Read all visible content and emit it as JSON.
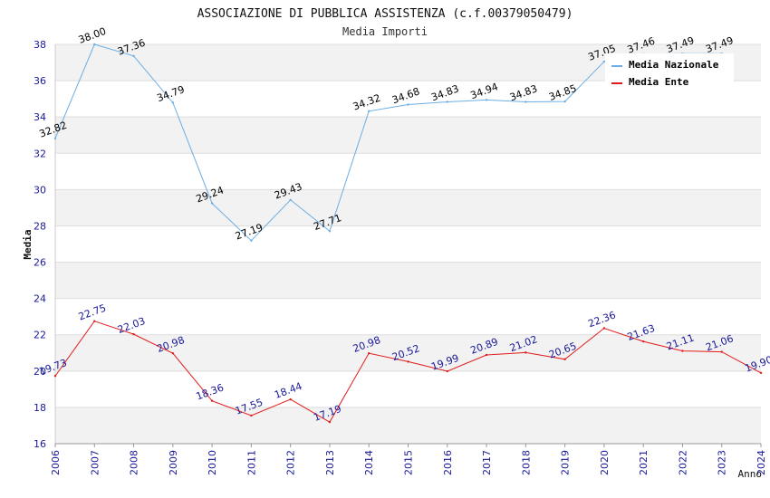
{
  "chart_data": {
    "type": "line",
    "title": "ASSOCIAZIONE DI PUBBLICA ASSISTENZA (c.f.00379050479)",
    "subtitle": "Media Importi",
    "xlabel": "Anno",
    "ylabel": "Media",
    "ylim": [
      16,
      38
    ],
    "yticks": [
      16,
      18,
      20,
      22,
      24,
      26,
      28,
      30,
      32,
      34,
      36,
      38
    ],
    "categories": [
      "2006",
      "2007",
      "2008",
      "2009",
      "2010",
      "2011",
      "2012",
      "2013",
      "2014",
      "2015",
      "2016",
      "2017",
      "2018",
      "2019",
      "2020",
      "2021",
      "2022",
      "2023",
      "2024"
    ],
    "series": [
      {
        "name": "Media Nazionale",
        "color": "#6aaee6",
        "label_color": "#000000",
        "values": [
          32.82,
          38.0,
          37.36,
          34.79,
          29.24,
          27.19,
          29.43,
          27.71,
          34.32,
          34.68,
          34.83,
          34.94,
          34.83,
          34.85,
          37.05,
          37.46,
          37.49,
          37.49,
          null
        ],
        "labels": [
          "32.82",
          "38.00",
          "37.36",
          "34.79",
          "29.24",
          "27.19",
          "29.43",
          "27.71",
          "34.32",
          "34.68",
          "34.83",
          "34.94",
          "34.83",
          "34.85",
          "37.05",
          "37.46",
          "37.49",
          "37.49",
          ""
        ]
      },
      {
        "name": "Media Ente",
        "color": "#e11b1b",
        "label_color": "#1a1a99",
        "values": [
          19.73,
          22.75,
          22.03,
          20.98,
          18.36,
          17.55,
          18.44,
          17.19,
          20.98,
          20.52,
          19.99,
          20.89,
          21.02,
          20.65,
          22.36,
          21.63,
          21.11,
          21.06,
          19.9
        ],
        "labels": [
          "19.73",
          "22.75",
          "22.03",
          "20.98",
          "18.36",
          "17.55",
          "18.44",
          "17.19",
          "20.98",
          "20.52",
          "19.99",
          "20.89",
          "21.02",
          "20.65",
          "22.36",
          "21.63",
          "21.11",
          "21.06",
          "19.90"
        ]
      }
    ],
    "legend": "top-right",
    "grid": "horizontal-bands"
  }
}
